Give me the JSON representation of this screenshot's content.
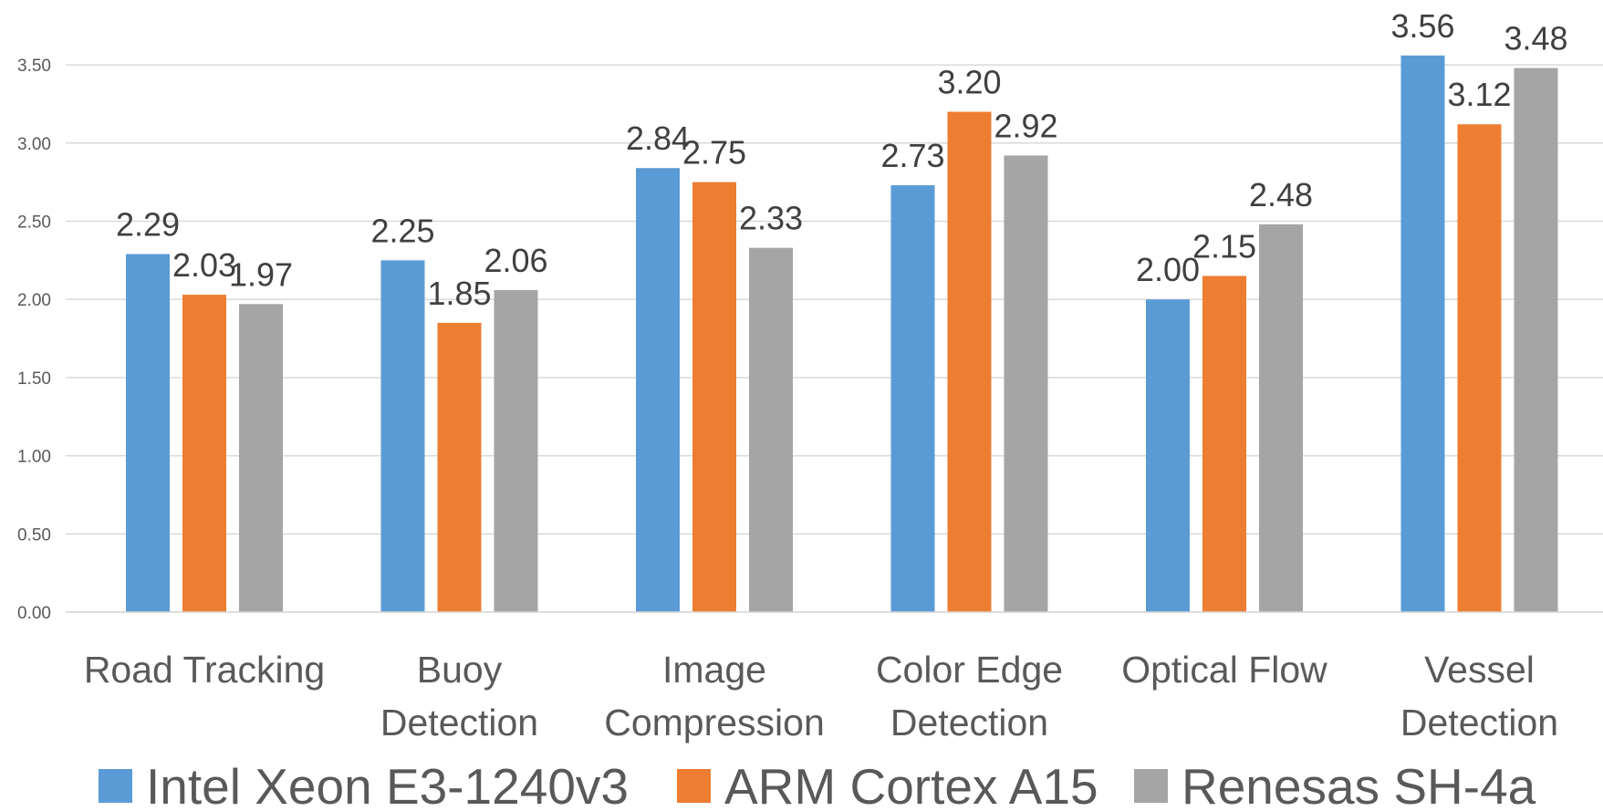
{
  "chart_data": {
    "type": "bar",
    "categories": [
      [
        "Road Tracking"
      ],
      [
        "Buoy",
        "Detection"
      ],
      [
        "Image",
        "Compression"
      ],
      [
        "Color Edge",
        "Detection"
      ],
      [
        "Optical Flow"
      ],
      [
        "Vessel",
        "Detection"
      ]
    ],
    "series": [
      {
        "name": "Intel Xeon E3-1240v3",
        "color": "#5B9BD5",
        "values": [
          2.29,
          2.25,
          2.84,
          2.73,
          2.0,
          3.56
        ]
      },
      {
        "name": "ARM Cortex A15",
        "color": "#ED7D31",
        "values": [
          2.03,
          1.85,
          2.75,
          3.2,
          2.15,
          3.12
        ]
      },
      {
        "name": "Renesas SH-4a",
        "color": "#A5A5A5",
        "values": [
          1.97,
          2.06,
          2.33,
          2.92,
          2.48,
          3.48
        ]
      }
    ],
    "yticks": [
      "0.00",
      "0.50",
      "1.00",
      "1.50",
      "2.00",
      "2.50",
      "3.00",
      "3.50"
    ],
    "ylim": [
      0,
      3.5
    ],
    "value_format_decimals": 2,
    "grid": true,
    "legend_position": "bottom",
    "title": "",
    "xlabel": "",
    "ylabel": ""
  }
}
